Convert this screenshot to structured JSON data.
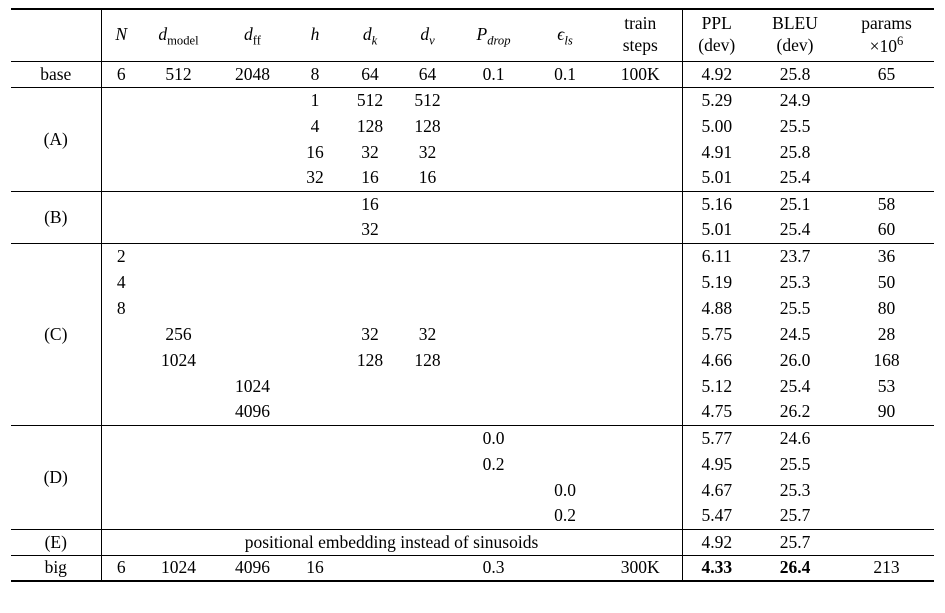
{
  "colors": {
    "background": "#ffffff",
    "text": "#000000",
    "rule": "#000000"
  },
  "table": {
    "columns": [
      {
        "key": "label",
        "header": {}
      },
      {
        "key": "n",
        "header": {
          "math": "N"
        }
      },
      {
        "key": "dmodel",
        "header": {
          "math": "d",
          "sub": "model"
        }
      },
      {
        "key": "dff",
        "header": {
          "math": "d",
          "sub": "ff"
        }
      },
      {
        "key": "h",
        "header": {
          "math": "h"
        }
      },
      {
        "key": "dk",
        "header": {
          "math": "d",
          "sub": "k"
        }
      },
      {
        "key": "dv",
        "header": {
          "math": "d",
          "sub": "v"
        }
      },
      {
        "key": "pdrop",
        "header": {
          "math": "P",
          "sub": "drop"
        }
      },
      {
        "key": "els",
        "header": {
          "math": "ϵ",
          "sub": "ls"
        }
      },
      {
        "key": "steps",
        "header": {
          "line1": "train",
          "line2": "steps"
        }
      },
      {
        "key": "ppl",
        "header": {
          "line1": "PPL",
          "line2": "(dev)"
        }
      },
      {
        "key": "bleu",
        "header": {
          "line1": "BLEU",
          "line2": "(dev)"
        }
      },
      {
        "key": "params",
        "header": {
          "line1": "params",
          "line2": "×10",
          "sup": "6"
        }
      }
    ],
    "body_column_order": [
      "n",
      "dmodel",
      "dff",
      "h",
      "dk",
      "dv",
      "pdrop",
      "els",
      "steps",
      "ppl",
      "bleu",
      "params"
    ],
    "span_columns": 9,
    "groups": [
      {
        "label": "base",
        "rows": [
          {
            "n": "6",
            "dmodel": "512",
            "dff": "2048",
            "h": "8",
            "dk": "64",
            "dv": "64",
            "pdrop": "0.1",
            "els": "0.1",
            "steps": "100K",
            "ppl": "4.92",
            "bleu": "25.8",
            "params": "65"
          }
        ]
      },
      {
        "label": "(A)",
        "rows": [
          {
            "h": "1",
            "dk": "512",
            "dv": "512",
            "ppl": "5.29",
            "bleu": "24.9"
          },
          {
            "h": "4",
            "dk": "128",
            "dv": "128",
            "ppl": "5.00",
            "bleu": "25.5"
          },
          {
            "h": "16",
            "dk": "32",
            "dv": "32",
            "ppl": "4.91",
            "bleu": "25.8"
          },
          {
            "h": "32",
            "dk": "16",
            "dv": "16",
            "ppl": "5.01",
            "bleu": "25.4"
          }
        ]
      },
      {
        "label": "(B)",
        "rows": [
          {
            "dk": "16",
            "ppl": "5.16",
            "bleu": "25.1",
            "params": "58"
          },
          {
            "dk": "32",
            "ppl": "5.01",
            "bleu": "25.4",
            "params": "60"
          }
        ]
      },
      {
        "label": "(C)",
        "rows": [
          {
            "n": "2",
            "ppl": "6.11",
            "bleu": "23.7",
            "params": "36"
          },
          {
            "n": "4",
            "ppl": "5.19",
            "bleu": "25.3",
            "params": "50"
          },
          {
            "n": "8",
            "ppl": "4.88",
            "bleu": "25.5",
            "params": "80"
          },
          {
            "dmodel": "256",
            "dk": "32",
            "dv": "32",
            "ppl": "5.75",
            "bleu": "24.5",
            "params": "28"
          },
          {
            "dmodel": "1024",
            "dk": "128",
            "dv": "128",
            "ppl": "4.66",
            "bleu": "26.0",
            "params": "168"
          },
          {
            "dff": "1024",
            "ppl": "5.12",
            "bleu": "25.4",
            "params": "53"
          },
          {
            "dff": "4096",
            "ppl": "4.75",
            "bleu": "26.2",
            "params": "90"
          }
        ]
      },
      {
        "label": "(D)",
        "rows": [
          {
            "pdrop": "0.0",
            "ppl": "5.77",
            "bleu": "24.6"
          },
          {
            "pdrop": "0.2",
            "ppl": "4.95",
            "bleu": "25.5"
          },
          {
            "els": "0.0",
            "ppl": "4.67",
            "bleu": "25.3"
          },
          {
            "els": "0.2",
            "ppl": "5.47",
            "bleu": "25.7"
          }
        ]
      },
      {
        "label": "(E)",
        "span_text": "positional embedding instead of sinusoids",
        "rows": [
          {
            "ppl": "4.92",
            "bleu": "25.7"
          }
        ]
      },
      {
        "label": "big",
        "rows": [
          {
            "n": "6",
            "dmodel": "1024",
            "dff": "4096",
            "h": "16",
            "pdrop": "0.3",
            "steps": "300K",
            "ppl": "4.33",
            "bleu": "26.4",
            "params": "213",
            "bold": [
              "ppl",
              "bleu"
            ]
          }
        ]
      }
    ]
  }
}
